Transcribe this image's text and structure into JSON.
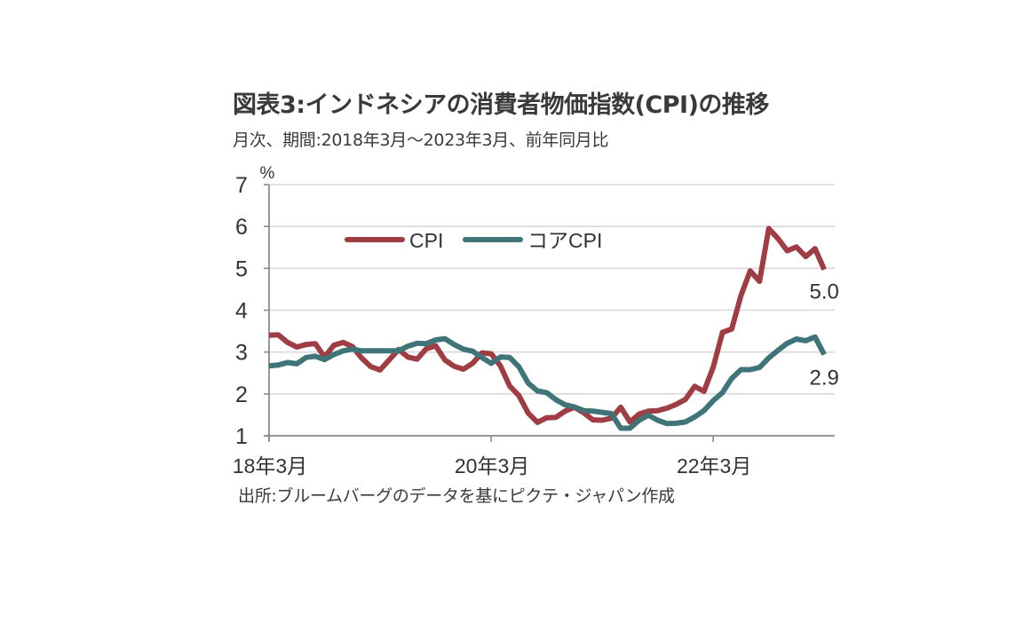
{
  "title": "図表3:インドネシアの消費者物価指数(CPI)の推移",
  "subtitle": "月次、期間:2018年3月～2023年3月、前年同月比",
  "source": "出所:ブルームバーグのデータを基にピクテ・ジャパン作成",
  "chart_data": {
    "type": "line",
    "title": "図表3:インドネシアの消費者物価指数(CPI)の推移",
    "subtitle": "月次、期間:2018年3月～2023年3月、前年同月比",
    "ylabel": "%",
    "xlabel": "",
    "ylim": [
      1,
      7
    ],
    "yticks": [
      "1",
      "2",
      "3",
      "4",
      "5",
      "6",
      "7"
    ],
    "grid": true,
    "legend_position": "top-left-inside",
    "x_start": "2018-03",
    "x_end": "2023-03",
    "frequency": "monthly",
    "xticks": [
      {
        "label": "18年3月",
        "index": 0
      },
      {
        "label": "20年3月",
        "index": 24
      },
      {
        "label": "22年3月",
        "index": 48
      }
    ],
    "series": [
      {
        "name": "CPI",
        "color": "#a03c44",
        "values": [
          3.4,
          3.41,
          3.23,
          3.12,
          3.18,
          3.2,
          2.88,
          3.16,
          3.23,
          3.13,
          2.86,
          2.65,
          2.57,
          2.82,
          3.06,
          2.88,
          2.83,
          3.08,
          3.15,
          2.81,
          2.66,
          2.59,
          2.73,
          2.98,
          2.96,
          2.67,
          2.19,
          1.96,
          1.54,
          1.32,
          1.43,
          1.44,
          1.59,
          1.68,
          1.55,
          1.38,
          1.37,
          1.42,
          1.68,
          1.33,
          1.52,
          1.59,
          1.6,
          1.66,
          1.75,
          1.87,
          2.18,
          2.06,
          2.64,
          3.47,
          3.55,
          4.35,
          4.94,
          4.69,
          5.95,
          5.71,
          5.42,
          5.51,
          5.28,
          5.47,
          4.97
        ],
        "end_label": "5.0"
      },
      {
        "name": "コアCPI",
        "color": "#3f7479",
        "values": [
          2.67,
          2.69,
          2.75,
          2.72,
          2.87,
          2.9,
          2.82,
          2.94,
          3.03,
          3.07,
          3.03,
          3.03,
          3.03,
          3.03,
          3.03,
          3.14,
          3.21,
          3.2,
          3.29,
          3.32,
          3.18,
          3.07,
          3.02,
          2.87,
          2.73,
          2.88,
          2.87,
          2.65,
          2.26,
          2.07,
          2.03,
          1.86,
          1.74,
          1.69,
          1.6,
          1.59,
          1.56,
          1.53,
          1.18,
          1.18,
          1.37,
          1.49,
          1.37,
          1.29,
          1.3,
          1.33,
          1.45,
          1.6,
          1.84,
          2.03,
          2.37,
          2.58,
          2.58,
          2.63,
          2.86,
          3.04,
          3.21,
          3.31,
          3.27,
          3.36,
          2.94
        ],
        "end_label": "2.9"
      }
    ]
  }
}
